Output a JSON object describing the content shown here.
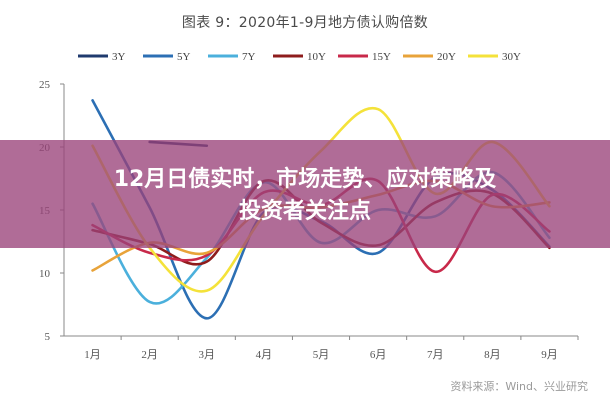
{
  "chart_data": {
    "type": "line",
    "title": "图表 9：2020年1-9月地方债认购倍数",
    "categories": [
      "1月",
      "2月",
      "3月",
      "4月",
      "5月",
      "6月",
      "7月",
      "8月",
      "9月"
    ],
    "ylim": [
      5,
      25
    ],
    "yticks": [
      5,
      10,
      15,
      20,
      25
    ],
    "grid": false,
    "legend_position": "top",
    "series": [
      {
        "name": "3Y",
        "color": "#1f3a6e",
        "values": [
          null,
          20.4,
          20.1,
          null,
          null,
          null,
          null,
          null,
          null
        ]
      },
      {
        "name": "5Y",
        "color": "#2c6fb4",
        "values": [
          23.7,
          15.2,
          6.4,
          14.8,
          14.1,
          11.6,
          17.6,
          16.6,
          12.1
        ]
      },
      {
        "name": "7Y",
        "color": "#4bb0dc",
        "values": [
          15.5,
          7.7,
          11.2,
          17.2,
          12.4,
          15.0,
          14.5,
          18.0,
          12.8
        ]
      },
      {
        "name": "10Y",
        "color": "#8e1c1c",
        "values": [
          13.4,
          12.3,
          10.9,
          17.3,
          14.0,
          12.2,
          15.6,
          16.3,
          12.0
        ]
      },
      {
        "name": "15Y",
        "color": "#c8294a",
        "values": [
          13.8,
          11.6,
          11.4,
          16.4,
          15.4,
          17.3,
          10.1,
          16.2,
          13.3
        ]
      },
      {
        "name": "20Y",
        "color": "#e8a33a",
        "values": [
          10.2,
          12.4,
          11.6,
          15.1,
          15.2,
          16.2,
          17.3,
          15.3,
          15.6
        ]
      },
      {
        "name": "30Y",
        "color": "#f4e23a",
        "values": [
          20.1,
          12.0,
          8.6,
          14.6,
          19.7,
          23.0,
          16.3,
          20.4,
          15.3
        ]
      }
    ]
  },
  "overlay": {
    "title_line1": "12月日债实时，市场走势、应对策略及",
    "title_line2": "投资者关注点"
  },
  "source": "资料来源：Wind、兴业研究"
}
